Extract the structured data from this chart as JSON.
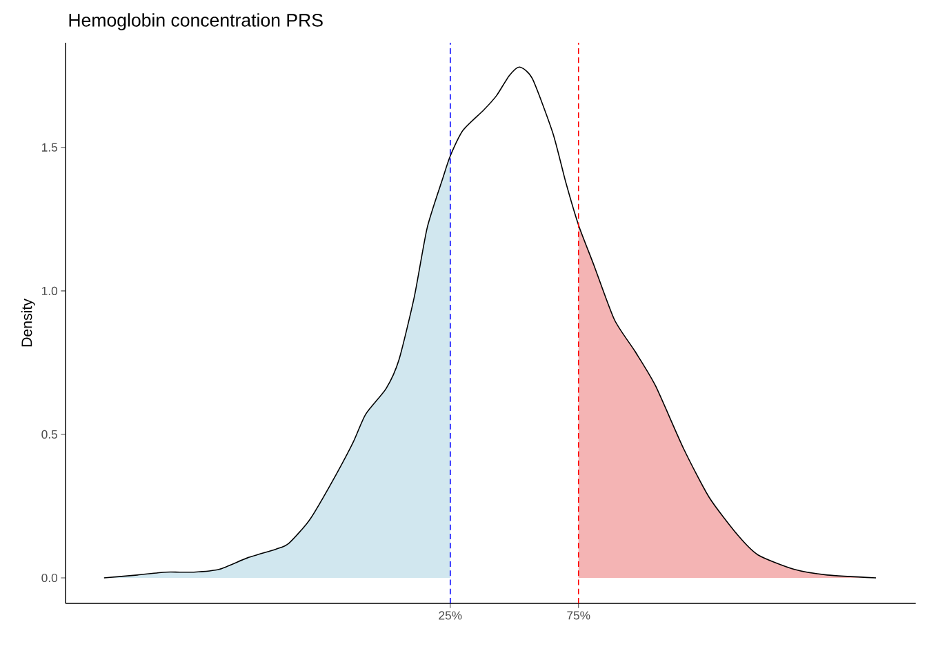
{
  "chart_data": {
    "type": "line",
    "title": "Hemoglobin concentration PRS",
    "ylabel": "Density",
    "xlim": [
      -125,
      206.5
    ],
    "ylim": [
      -0.089,
      1.865
    ],
    "xticks": [
      {
        "value": 25,
        "label": "25%"
      },
      {
        "value": 75,
        "label": "75%"
      }
    ],
    "yticks": [
      {
        "value": 0,
        "label": "0.0"
      },
      {
        "value": 0.5,
        "label": "0.5"
      },
      {
        "value": 1,
        "label": "1.0"
      },
      {
        "value": 1.5,
        "label": "1.5"
      }
    ],
    "series": [
      {
        "type": "area",
        "color": "#d1e7ef",
        "x": [
          -110,
          -97,
          -86,
          -75,
          -65,
          -54,
          -43,
          -38,
          -30,
          -22,
          -13,
          -8,
          0,
          5,
          11,
          16,
          22,
          25
        ],
        "values": [
          0,
          0.01,
          0.02,
          0.02,
          0.03,
          0.07,
          0.1,
          0.12,
          0.2,
          0.32,
          0.47,
          0.57,
          0.66,
          0.76,
          0.98,
          1.22,
          1.39,
          1.47
        ]
      },
      {
        "type": "area",
        "color": "#f4b4b4",
        "x": [
          75,
          81,
          89,
          97,
          105,
          116,
          126,
          137,
          145,
          159,
          172,
          191
        ],
        "values": [
          1.23,
          1.09,
          0.9,
          0.79,
          0.67,
          0.45,
          0.28,
          0.15,
          0.08,
          0.03,
          0.01,
          0
        ]
      },
      {
        "color": "#000000",
        "x": [
          -110,
          -97,
          -86,
          -75,
          -65,
          -54,
          -43,
          -38,
          -30,
          -22,
          -13,
          -8,
          0,
          5,
          11,
          16,
          22,
          25,
          30,
          38,
          43,
          48,
          52,
          57,
          65,
          70,
          75,
          81,
          89,
          97,
          105,
          116,
          126,
          137,
          145,
          159,
          172,
          191
        ],
        "values": [
          0,
          0.01,
          0.02,
          0.02,
          0.03,
          0.07,
          0.1,
          0.12,
          0.2,
          0.32,
          0.47,
          0.57,
          0.66,
          0.76,
          0.98,
          1.22,
          1.39,
          1.47,
          1.56,
          1.63,
          1.68,
          1.75,
          1.78,
          1.74,
          1.55,
          1.38,
          1.23,
          1.09,
          0.9,
          0.79,
          0.67,
          0.45,
          0.28,
          0.15,
          0.08,
          0.03,
          0.01,
          0
        ]
      }
    ],
    "ref_lines": [
      {
        "axis": "x",
        "value": 25,
        "color": "#0000ff",
        "line_style": "dashed"
      },
      {
        "axis": "x",
        "value": 75,
        "color": "#ff0000",
        "line_style": "dashed"
      }
    ]
  }
}
